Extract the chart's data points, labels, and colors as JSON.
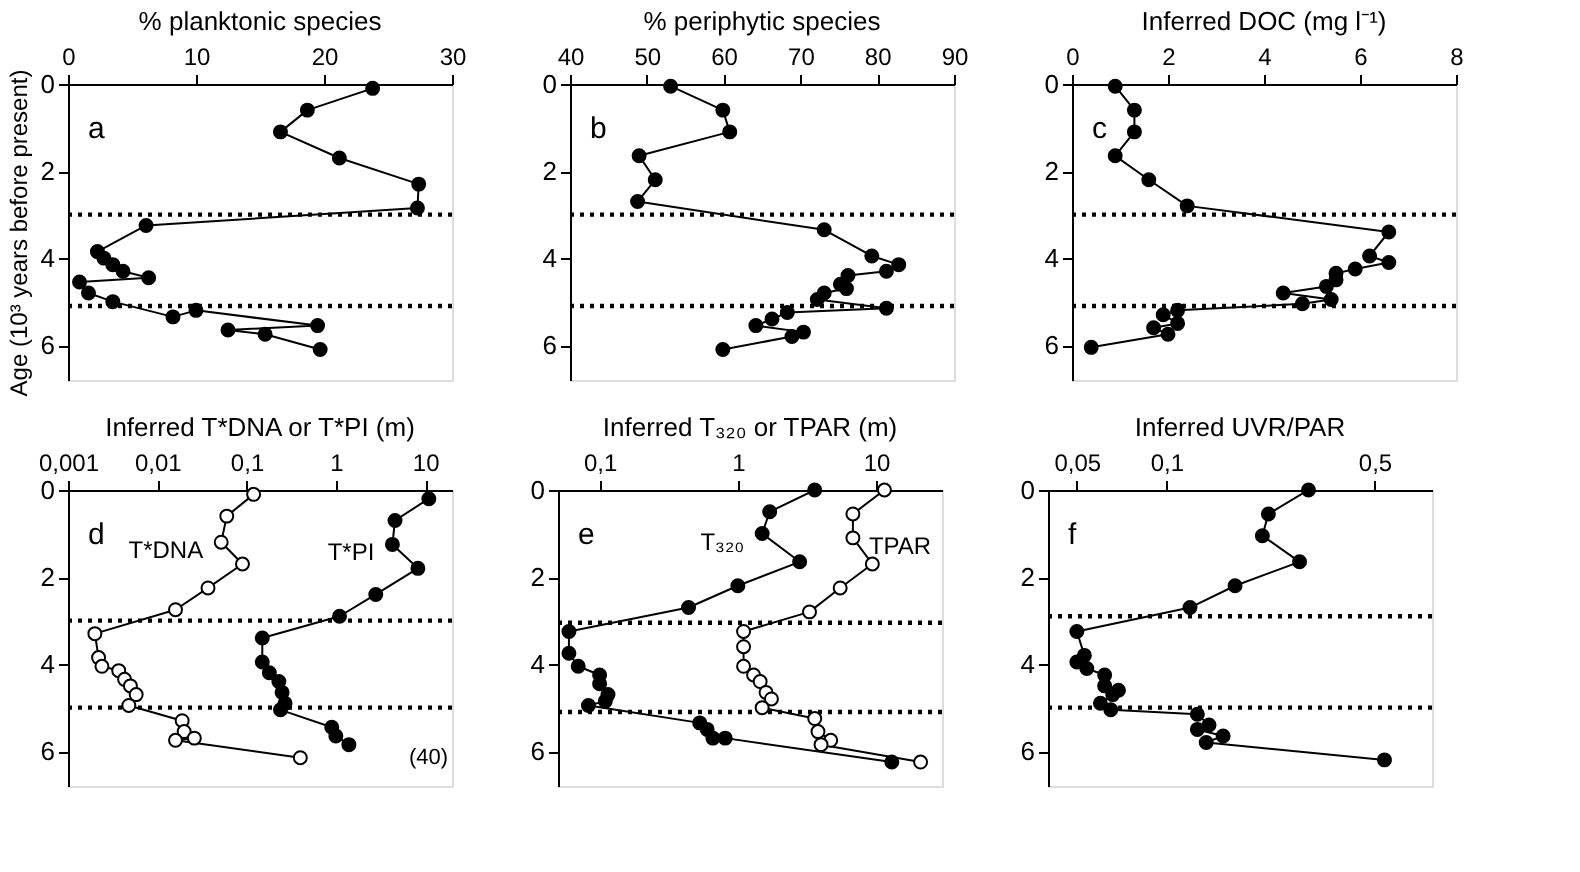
{
  "chart_data": [
    {
      "type": "line",
      "title": "% planktonic species",
      "ylabel": "Age (10³ years before present)",
      "xlim": [
        0,
        30
      ],
      "xticks": [
        0,
        10,
        20,
        30
      ],
      "ylim": [
        6.8,
        0
      ],
      "yticks": [
        0,
        2,
        4,
        6
      ],
      "marker": "circle",
      "grid": false,
      "legend": false,
      "annotations": [
        "a"
      ],
      "ref_lines": [
        {
          "axis": "y",
          "value": 3.0,
          "line_style": "dotted",
          "color": "#000000"
        },
        {
          "axis": "y",
          "value": 5.1,
          "line_style": "dotted",
          "color": "#000000"
        }
      ],
      "series": [
        {
          "color": "#000000",
          "x": [
            23.8,
            18.7,
            16.6,
            21.2,
            27.4,
            27.3,
            6.1,
            2.3,
            2.8,
            3.5,
            4.3,
            6.3,
            0.9,
            1.6,
            3.5,
            8.2,
            10.0,
            19.5,
            12.5,
            15.4,
            19.7
          ],
          "values": [
            0.1,
            0.6,
            1.1,
            1.7,
            2.3,
            2.85,
            3.25,
            3.85,
            4.0,
            4.15,
            4.3,
            4.45,
            4.55,
            4.8,
            5.0,
            5.35,
            5.2,
            5.55,
            5.65,
            5.75,
            6.1
          ]
        }
      ]
    },
    {
      "type": "line",
      "title": "% periphytic species",
      "xlim": [
        40,
        90
      ],
      "xticks": [
        40,
        50,
        60,
        70,
        80,
        90
      ],
      "ylim": [
        6.8,
        0
      ],
      "yticks": [
        0,
        2,
        4,
        6
      ],
      "marker": "circle",
      "grid": false,
      "legend": false,
      "annotations": [
        "b"
      ],
      "ref_lines": [
        {
          "axis": "y",
          "value": 3.0,
          "line_style": "dotted",
          "color": "#000000"
        },
        {
          "axis": "y",
          "value": 5.1,
          "line_style": "dotted",
          "color": "#000000"
        }
      ],
      "series": [
        {
          "color": "#000000",
          "x": [
            53.1,
            59.9,
            60.8,
            49.0,
            51.1,
            48.8,
            73.1,
            79.3,
            82.8,
            81.2,
            76.2,
            75.2,
            76.0,
            73.1,
            72.2,
            81.2,
            68.3,
            66.3,
            64.2,
            70.4,
            68.9,
            59.9
          ],
          "values": [
            0.05,
            0.6,
            1.1,
            1.65,
            2.2,
            2.7,
            3.35,
            3.95,
            4.15,
            4.3,
            4.4,
            4.6,
            4.7,
            4.8,
            4.95,
            5.15,
            5.25,
            5.4,
            5.55,
            5.7,
            5.8,
            6.1
          ]
        }
      ]
    },
    {
      "type": "line",
      "title": "Inferred DOC (mg l⁻¹)",
      "xlim": [
        0,
        8
      ],
      "xticks": [
        0,
        2,
        4,
        6,
        8
      ],
      "ylim": [
        6.8,
        0
      ],
      "yticks": [
        0,
        2,
        4,
        6
      ],
      "marker": "circle",
      "grid": false,
      "legend": false,
      "annotations": [
        "c"
      ],
      "ref_lines": [
        {
          "axis": "y",
          "value": 3.0,
          "line_style": "dotted",
          "color": "#000000"
        },
        {
          "axis": "y",
          "value": 5.1,
          "line_style": "dotted",
          "color": "#000000"
        }
      ],
      "series": [
        {
          "color": "#000000",
          "x": [
            0.9,
            1.3,
            1.3,
            0.9,
            1.6,
            2.4,
            6.6,
            6.2,
            6.6,
            5.9,
            5.5,
            5.5,
            5.3,
            4.4,
            5.4,
            4.8,
            2.2,
            1.9,
            2.2,
            1.7,
            2.0,
            0.4
          ],
          "values": [
            0.05,
            0.6,
            1.1,
            1.65,
            2.2,
            2.8,
            3.4,
            3.95,
            4.1,
            4.25,
            4.35,
            4.5,
            4.65,
            4.8,
            4.95,
            5.05,
            5.2,
            5.3,
            5.5,
            5.6,
            5.75,
            6.05
          ]
        }
      ]
    },
    {
      "type": "line",
      "title": "Inferred T*DNA or T*PI (m)",
      "log": "x",
      "xlim": [
        0.001,
        20
      ],
      "xticks": [
        {
          "value": 0.001,
          "label": "0,001"
        },
        {
          "value": 0.01,
          "label": "0,01"
        },
        {
          "value": 0.1,
          "label": "0,1"
        },
        1,
        10
      ],
      "ylim": [
        6.8,
        0
      ],
      "yticks": [
        0,
        2,
        4,
        6
      ],
      "marker": "circle",
      "grid": false,
      "legend": false,
      "annotations": [
        "d",
        "(40)"
      ],
      "ref_lines": [
        {
          "axis": "y",
          "value": 3.0,
          "line_style": "dotted",
          "color": "#000000"
        },
        {
          "axis": "y",
          "value": 5.0,
          "line_style": "dotted",
          "color": "#000000"
        }
      ],
      "series": [
        {
          "name": "T*DNA",
          "color": "#ffffff",
          "x": [
            0.12,
            0.06,
            0.052,
            0.09,
            0.037,
            0.016,
            0.002,
            0.0022,
            0.0024,
            0.0037,
            0.0043,
            0.005,
            0.0058,
            0.0048,
            0.019,
            0.02,
            0.026,
            0.016,
            0.4
          ],
          "values": [
            0.1,
            0.6,
            1.2,
            1.7,
            2.25,
            2.75,
            3.3,
            3.85,
            4.05,
            4.15,
            4.35,
            4.5,
            4.7,
            4.95,
            5.3,
            5.55,
            5.7,
            5.75,
            6.15
          ]
        },
        {
          "name": "T*PI",
          "color": "#000000",
          "x": [
            11,
            4.6,
            4.3,
            8.3,
            2.8,
            1.1,
            0.15,
            0.15,
            0.18,
            0.23,
            0.25,
            0.27,
            0.24,
            0.9,
            1.0,
            1.4
          ],
          "values": [
            0.2,
            0.7,
            1.25,
            1.8,
            2.4,
            2.9,
            3.4,
            3.95,
            4.2,
            4.4,
            4.65,
            4.9,
            5.05,
            5.45,
            5.65,
            5.85
          ]
        }
      ]
    },
    {
      "type": "line",
      "title": "Inferred T₃₂₀ or TPAR (m)",
      "log": "x",
      "xlim": [
        0.05,
        30
      ],
      "xticks": [
        {
          "value": 0.1,
          "label": "0,1"
        },
        1,
        10
      ],
      "ylim": [
        6.8,
        0
      ],
      "yticks": [
        0,
        2,
        4,
        6
      ],
      "marker": "circle",
      "grid": false,
      "legend": false,
      "annotations": [
        "e"
      ],
      "ref_lines": [
        {
          "axis": "y",
          "value": 3.05,
          "line_style": "dotted",
          "color": "#000000"
        },
        {
          "axis": "y",
          "value": 5.1,
          "line_style": "dotted",
          "color": "#000000"
        }
      ],
      "series": [
        {
          "name": "T₃₂₀",
          "color": "#000000",
          "x": [
            3.6,
            1.7,
            1.5,
            2.8,
            1.0,
            0.44,
            0.06,
            0.06,
            0.07,
            0.1,
            0.1,
            0.115,
            0.11,
            0.083,
            0.53,
            0.6,
            0.66,
            0.81,
            13
          ],
          "values": [
            0.0,
            0.5,
            1.0,
            1.65,
            2.2,
            2.7,
            3.25,
            3.75,
            4.05,
            4.25,
            4.45,
            4.7,
            4.85,
            4.95,
            5.35,
            5.5,
            5.7,
            5.7,
            6.25
          ]
        },
        {
          "name": "TPAR",
          "color": "#ffffff",
          "x": [
            11.5,
            6.8,
            6.8,
            9.4,
            5.5,
            3.3,
            1.1,
            1.1,
            1.1,
            1.3,
            1.45,
            1.6,
            1.75,
            1.5,
            3.6,
            3.8,
            4.7,
            4.0,
            21
          ],
          "values": [
            0.0,
            0.55,
            1.1,
            1.7,
            2.25,
            2.8,
            3.25,
            3.6,
            4.05,
            4.25,
            4.4,
            4.65,
            4.8,
            5.0,
            5.25,
            5.55,
            5.75,
            5.85,
            6.25
          ]
        }
      ]
    },
    {
      "type": "line",
      "title": "Inferred UVR/PAR",
      "log": "x",
      "xlim": [
        0.04,
        0.78
      ],
      "xticks": [
        {
          "value": 0.05,
          "label": "0,05"
        },
        {
          "value": 0.1,
          "label": "0,1"
        },
        {
          "value": 0.5,
          "label": "0,5"
        }
      ],
      "ylim": [
        6.8,
        0
      ],
      "yticks": [
        0,
        2,
        4,
        6
      ],
      "marker": "circle",
      "grid": false,
      "legend": false,
      "annotations": [
        "f"
      ],
      "ref_lines": [
        {
          "axis": "y",
          "value": 2.9,
          "line_style": "dotted",
          "color": "#000000"
        },
        {
          "axis": "y",
          "value": 5.0,
          "line_style": "dotted",
          "color": "#000000"
        }
      ],
      "series": [
        {
          "color": "#000000",
          "x": [
            0.3,
            0.22,
            0.21,
            0.28,
            0.17,
            0.12,
            0.05,
            0.053,
            0.05,
            0.054,
            0.062,
            0.062,
            0.069,
            0.066,
            0.06,
            0.065,
            0.127,
            0.139,
            0.127,
            0.155,
            0.136,
            0.54
          ],
          "values": [
            0.0,
            0.55,
            1.05,
            1.65,
            2.2,
            2.7,
            3.25,
            3.8,
            3.95,
            4.1,
            4.25,
            4.5,
            4.6,
            4.7,
            4.9,
            5.05,
            5.15,
            5.4,
            5.5,
            5.65,
            5.8,
            6.2
          ]
        }
      ]
    }
  ]
}
